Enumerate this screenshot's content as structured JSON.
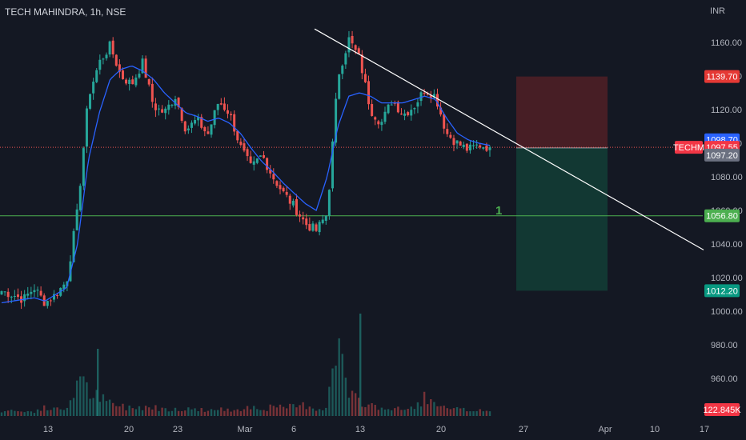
{
  "header": {
    "symbol_line": "TECH MAHINDRA, 1h, NSE",
    "currency": "INR"
  },
  "colors": {
    "background": "#141823",
    "up": "#26a69a",
    "down": "#ef5350",
    "ma": "#2962ff",
    "trendline": "#ffffff",
    "support": "#4caf50",
    "stop_zone": "#4a1f26",
    "target_zone": "#123a35"
  },
  "chart_data": {
    "type": "candlestick",
    "title": "TECH MAHINDRA, 1h, NSE",
    "y_unit": "INR",
    "ylim": [
      940,
      1175
    ],
    "x_ticks": [
      "13",
      "20",
      "23",
      "Mar",
      "6",
      "13",
      "20",
      "27",
      "Apr",
      "10",
      "17"
    ],
    "y_ticks": [
      960,
      980,
      1000,
      1020,
      1040,
      1060,
      1080,
      1100,
      1120,
      1140,
      1160
    ],
    "price_labels": [
      {
        "label": "1139.70",
        "value": 1139.7,
        "kind": "stop"
      },
      {
        "label": "1098.70",
        "value": 1098.7,
        "kind": "ma"
      },
      {
        "label": "TECHM",
        "value": 1097.55,
        "kind": "symbol"
      },
      {
        "label": "1097.55",
        "value": 1097.55,
        "kind": "last"
      },
      {
        "label": "1097.20",
        "value": 1097.2,
        "kind": "entry"
      },
      {
        "label": "1056.80",
        "value": 1056.8,
        "kind": "support"
      },
      {
        "label": "1012.20",
        "value": 1012.2,
        "kind": "target"
      },
      {
        "label": "122.845K",
        "value": null,
        "kind": "volume"
      }
    ],
    "annotation": "1",
    "support_level": 1056.8,
    "entry_level": 1097.2,
    "stop_level": 1139.7,
    "target_level": 1012.2,
    "trendline": {
      "from_price": 1168.0,
      "to_price": 1036.5
    },
    "price_path": [
      1012,
      1010,
      1007,
      1014,
      1005,
      1010,
      1018,
      1060,
      1128,
      1148,
      1158,
      1140,
      1135,
      1148,
      1122,
      1118,
      1128,
      1108,
      1114,
      1105,
      1125,
      1118,
      1098,
      1085,
      1093,
      1080,
      1070,
      1062,
      1052,
      1048,
      1058,
      1140,
      1162,
      1150,
      1120,
      1112,
      1126,
      1117,
      1122,
      1132,
      1128,
      1106,
      1100,
      1096,
      1099,
      1097.55
    ],
    "ma_path": [
      1005,
      1006,
      1007,
      1008,
      1006,
      1010,
      1014,
      1040,
      1090,
      1118,
      1138,
      1144,
      1146,
      1143,
      1138,
      1130,
      1124,
      1118,
      1116,
      1113,
      1115,
      1112,
      1106,
      1097,
      1089,
      1083,
      1076,
      1070,
      1064,
      1060,
      1080,
      1110,
      1128,
      1130,
      1128,
      1124,
      1124,
      1124,
      1126,
      1128,
      1126,
      1115,
      1106,
      1102,
      1100,
      1098.7
    ],
    "volume": {
      "last_label": "122.845K",
      "profile": [
        6,
        7,
        5,
        6,
        10,
        8,
        9,
        45,
        32,
        22,
        16,
        12,
        10,
        12,
        11,
        9,
        10,
        8,
        9,
        7,
        8,
        7,
        10,
        12,
        9,
        11,
        10,
        12,
        14,
        9,
        12,
        95,
        25,
        18,
        14,
        10,
        9,
        8,
        10,
        24,
        12,
        9,
        8,
        7,
        8,
        6
      ]
    }
  }
}
